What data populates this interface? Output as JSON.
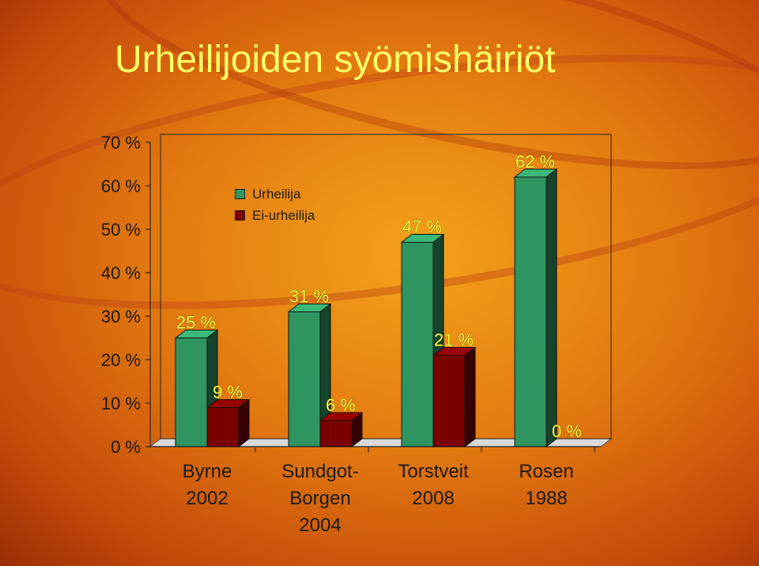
{
  "slide": {
    "title": "Urheilijoiden syömishäiriöt"
  },
  "colors": {
    "athlete": "#2e9460",
    "non_athlete": "#7a0000",
    "title": "#ffff66",
    "data_label": "#ffff33"
  },
  "chart_data": {
    "type": "bar",
    "title": "",
    "categories": [
      [
        "Byrne",
        "2002"
      ],
      [
        "Sundgot-",
        "Borgen",
        "2004"
      ],
      [
        "Torstveit",
        "2008"
      ],
      [
        "Rosen",
        "1988"
      ]
    ],
    "series": [
      {
        "name": "Urheilija",
        "values": [
          25,
          31,
          47,
          62
        ],
        "labels": [
          "25 %",
          "31 %",
          "47 %",
          "62 %"
        ]
      },
      {
        "name": "Ei-urheilija",
        "values": [
          9,
          6,
          21,
          0
        ],
        "labels": [
          "9 %",
          "6 %",
          "21 %",
          "0 %"
        ]
      }
    ],
    "y_ticks": [
      "0 %",
      "10 %",
      "20 %",
      "30 %",
      "40 %",
      "50 %",
      "60 %",
      "70 %"
    ],
    "ylim": [
      0,
      70
    ],
    "legend": {
      "position": "top-left",
      "items": [
        "Urheilija",
        "Ei-urheilija"
      ]
    },
    "grid": false,
    "style": "3d-bar"
  }
}
